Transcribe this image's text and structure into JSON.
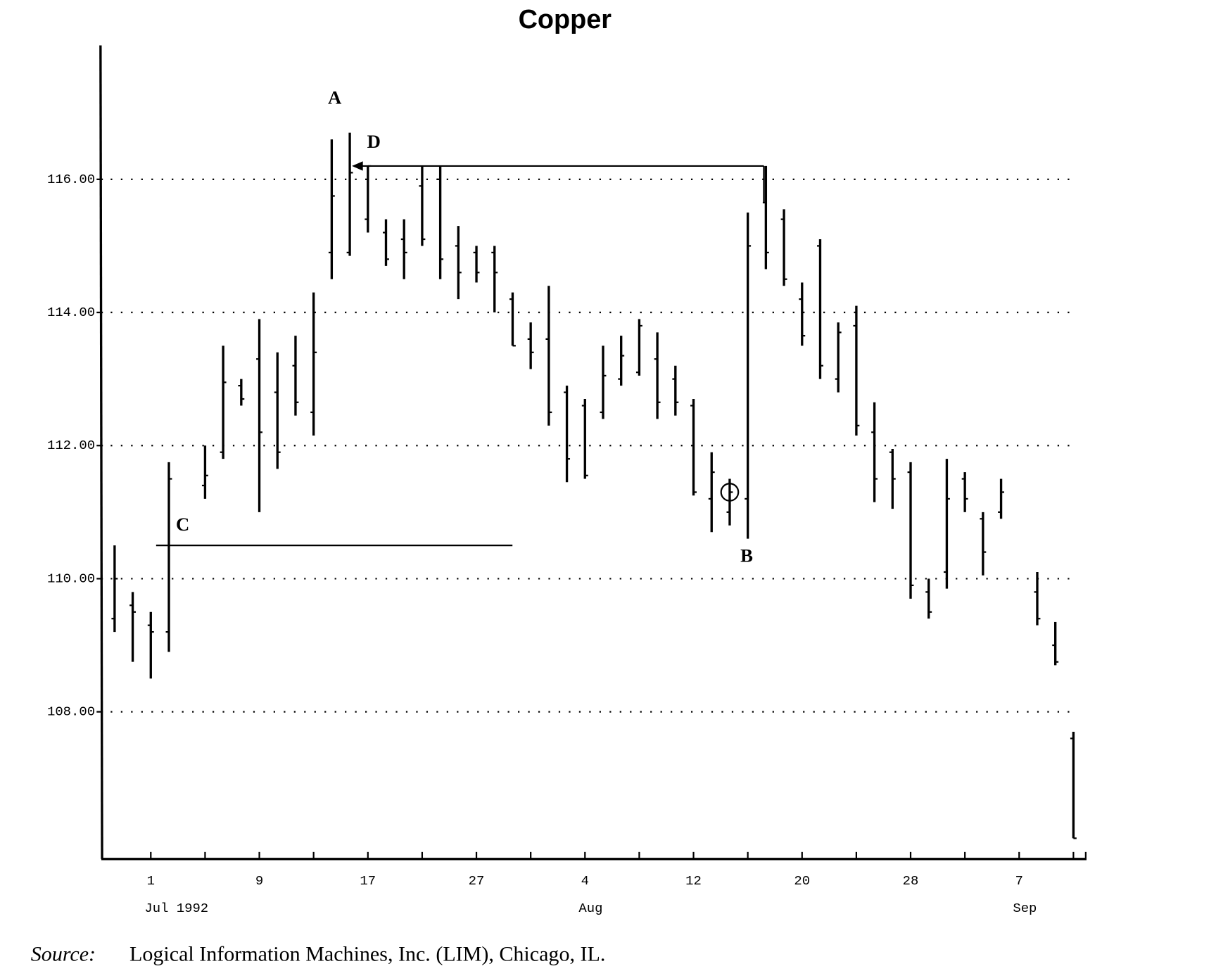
{
  "chart_data": {
    "type": "ohlc",
    "title": "Copper",
    "source_label": "Source:",
    "source_text": "Logical Information Machines, Inc. (LIM), Chicago, IL.",
    "categories": [
      null,
      null,
      "1",
      null,
      null,
      null,
      null,
      null,
      "9",
      null,
      null,
      null,
      null,
      null,
      "17",
      null,
      null,
      null,
      null,
      null,
      "27",
      null,
      null,
      null,
      null,
      null,
      "4",
      null,
      null,
      null,
      null,
      null,
      "12",
      null,
      null,
      null,
      null,
      null,
      "20",
      null,
      null,
      null,
      null,
      null,
      "28",
      null,
      null,
      null,
      null,
      null,
      "7",
      null,
      null,
      null
    ],
    "month_labels": [
      null,
      null,
      "Jul 1992",
      null,
      null,
      null,
      null,
      null,
      null,
      null,
      null,
      null,
      null,
      null,
      null,
      null,
      null,
      null,
      null,
      null,
      null,
      null,
      null,
      null,
      null,
      null,
      "Aug",
      null,
      null,
      null,
      null,
      null,
      null,
      null,
      null,
      null,
      null,
      null,
      null,
      null,
      null,
      null,
      null,
      null,
      null,
      null,
      null,
      null,
      null,
      null,
      "Sep",
      null,
      null,
      null
    ],
    "open": [
      109.4,
      109.6,
      109.3,
      109.2,
      null,
      111.4,
      111.9,
      112.9,
      113.3,
      112.8,
      113.2,
      112.5,
      114.9,
      114.9,
      115.4,
      115.2,
      115.1,
      115.9,
      116.0,
      115.0,
      114.9,
      114.9,
      114.2,
      113.6,
      113.6,
      112.8,
      112.6,
      112.5,
      113.0,
      113.1,
      113.3,
      113.0,
      112.6,
      111.2,
      111.0,
      111.2,
      115.65,
      115.4,
      114.2,
      115.0,
      113.0,
      113.8,
      112.2,
      111.9,
      111.6,
      109.8,
      110.1,
      111.5,
      110.9,
      111.0,
      null,
      109.8,
      109.0,
      107.6
    ],
    "high": [
      110.5,
      109.8,
      109.5,
      111.75,
      null,
      112.0,
      113.5,
      113.0,
      113.9,
      113.4,
      113.65,
      114.3,
      116.6,
      116.7,
      116.2,
      115.4,
      115.4,
      116.2,
      116.2,
      115.3,
      115.0,
      115.0,
      114.3,
      113.85,
      114.4,
      112.9,
      112.7,
      113.5,
      113.65,
      113.9,
      113.7,
      113.2,
      112.7,
      111.9,
      111.5,
      115.5,
      116.2,
      115.55,
      114.45,
      115.1,
      113.85,
      114.1,
      112.65,
      111.95,
      111.75,
      110.0,
      111.8,
      111.6,
      111.0,
      111.5,
      null,
      110.1,
      109.35,
      107.7
    ],
    "low": [
      109.2,
      108.75,
      108.5,
      108.9,
      null,
      111.2,
      111.8,
      112.6,
      111.0,
      111.65,
      112.45,
      112.15,
      114.5,
      114.85,
      115.2,
      114.7,
      114.5,
      115.0,
      114.5,
      114.2,
      114.45,
      114.0,
      113.5,
      113.15,
      112.3,
      111.45,
      111.5,
      112.4,
      112.9,
      113.05,
      112.4,
      112.45,
      111.25,
      110.7,
      110.8,
      110.6,
      114.65,
      114.4,
      113.5,
      113.0,
      112.8,
      112.15,
      111.15,
      111.05,
      109.7,
      109.4,
      109.85,
      111.0,
      110.05,
      110.9,
      null,
      109.3,
      108.7,
      106.1
    ],
    "close": [
      110.0,
      109.5,
      109.2,
      111.5,
      null,
      111.55,
      112.95,
      112.7,
      112.2,
      111.9,
      112.65,
      113.4,
      115.75,
      116.1,
      116.2,
      114.8,
      114.9,
      115.1,
      114.8,
      114.6,
      114.6,
      114.6,
      113.5,
      113.4,
      112.5,
      111.8,
      111.55,
      113.05,
      113.35,
      113.8,
      112.65,
      112.65,
      111.3,
      111.6,
      111.3,
      115.0,
      114.9,
      114.5,
      113.65,
      113.2,
      113.7,
      112.3,
      111.5,
      111.5,
      109.9,
      109.5,
      111.2,
      111.2,
      110.4,
      111.3,
      null,
      109.4,
      108.75,
      106.1
    ],
    "color": "#000000",
    "ylim": [
      105.8,
      118
    ],
    "yticks": [
      {
        "value": 108,
        "label": "108.00"
      },
      {
        "value": 110,
        "label": "110.00"
      },
      {
        "value": 112,
        "label": "112.00"
      },
      {
        "value": 114,
        "label": "114.00"
      },
      {
        "value": 116,
        "label": "116.00"
      }
    ],
    "grid": true,
    "annotations": [
      {
        "text": "A"
      },
      {
        "text": "B"
      },
      {
        "text": "C"
      },
      {
        "text": "D"
      }
    ],
    "reference_lines": [
      {
        "label": "C",
        "y": 110.5
      },
      {
        "label": "D",
        "y": 116.2
      }
    ]
  }
}
